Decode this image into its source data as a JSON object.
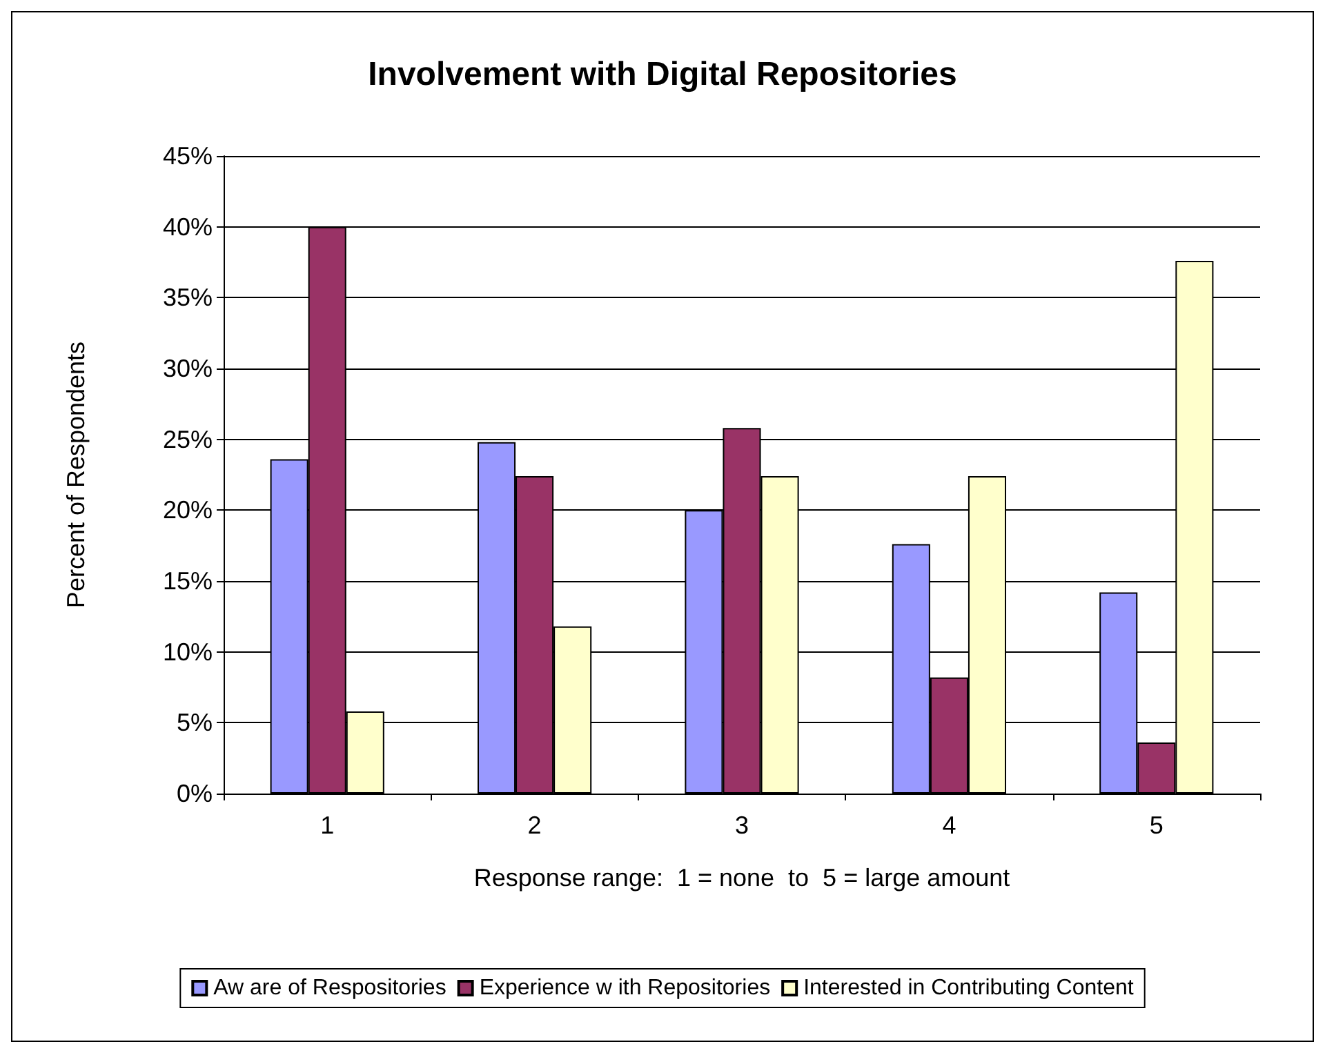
{
  "chart_data": {
    "type": "bar",
    "title": "Involvement with Digital Repositories",
    "xlabel": "Response range:  1 = none  to  5 = large amount",
    "ylabel": "Percent of Respondents",
    "categories": [
      "1",
      "2",
      "3",
      "4",
      "5"
    ],
    "series": [
      {
        "name": "Aw are of Respositories",
        "color": "#9999ff",
        "values": [
          23.6,
          24.8,
          20.0,
          17.6,
          14.2
        ]
      },
      {
        "name": "Experience w ith Repositories",
        "color": "#993366",
        "values": [
          40.0,
          22.4,
          25.8,
          8.2,
          3.6
        ]
      },
      {
        "name": "Interested in Contributing Content",
        "color": "#ffffcc",
        "values": [
          5.8,
          11.8,
          22.4,
          22.4,
          37.6
        ]
      }
    ],
    "ylim": [
      0,
      45
    ],
    "yticks": [
      {
        "value": 0,
        "label": "0%"
      },
      {
        "value": 5,
        "label": "5%"
      },
      {
        "value": 10,
        "label": "10%"
      },
      {
        "value": 15,
        "label": "15%"
      },
      {
        "value": 20,
        "label": "20%"
      },
      {
        "value": 25,
        "label": "25%"
      },
      {
        "value": 30,
        "label": "30%"
      },
      {
        "value": 35,
        "label": "35%"
      },
      {
        "value": 40,
        "label": "40%"
      },
      {
        "value": 45,
        "label": "45%"
      }
    ],
    "grid": "y",
    "legend": "bottom"
  }
}
